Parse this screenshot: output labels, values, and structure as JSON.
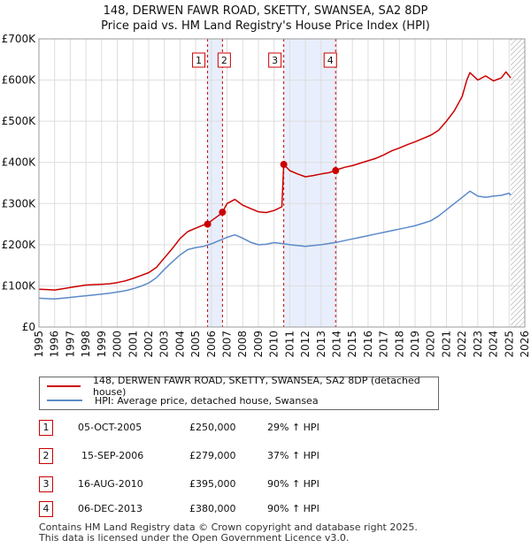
{
  "title_line1": "148, DERWEN FAWR ROAD, SKETTY, SWANSEA, SA2 8DP",
  "title_line2": "Price paid vs. HM Land Registry's House Price Index (HPI)",
  "colors": {
    "price": "#cc0000",
    "hpi": "#5b8ac9",
    "highlight": "#e8eefb",
    "grid": "#dddddd"
  },
  "chart_data": {
    "type": "line",
    "xlim": [
      1995,
      2026
    ],
    "ylim": [
      0,
      700000
    ],
    "y_ticks": [
      {
        "value": 0,
        "label": "£0"
      },
      {
        "value": 100000,
        "label": "£100K"
      },
      {
        "value": 200000,
        "label": "£200K"
      },
      {
        "value": 300000,
        "label": "£300K"
      },
      {
        "value": 400000,
        "label": "£400K"
      },
      {
        "value": 500000,
        "label": "£500K"
      },
      {
        "value": 600000,
        "label": "£600K"
      },
      {
        "value": 700000,
        "label": "£700K"
      }
    ],
    "x_ticks": [
      1995,
      1996,
      1997,
      1998,
      1999,
      2000,
      2001,
      2002,
      2003,
      2004,
      2005,
      2006,
      2007,
      2008,
      2009,
      2010,
      2011,
      2012,
      2013,
      2014,
      2015,
      2016,
      2017,
      2018,
      2019,
      2020,
      2021,
      2022,
      2023,
      2024,
      2025,
      2026
    ],
    "shaded_ranges": [
      [
        2005.76,
        2006.71
      ],
      [
        2010.62,
        2013.93
      ]
    ],
    "hatched_from": 2025.1,
    "series": [
      {
        "name": "148, DERWEN FAWR ROAD, SKETTY, SWANSEA, SA2 8DP (detached house)",
        "color": "#cc0000",
        "x": [
          1995,
          1995.5,
          1996,
          1996.5,
          1997,
          1997.5,
          1998,
          1998.5,
          1999,
          1999.5,
          2000,
          2000.5,
          2001,
          2001.5,
          2002,
          2002.5,
          2003,
          2003.5,
          2004,
          2004.5,
          2005,
          2005.5,
          2005.76,
          2006,
          2006.5,
          2006.71,
          2007,
          2007.5,
          2008,
          2008.5,
          2009,
          2009.5,
          2010,
          2010.5,
          2010.62,
          2010.7,
          2011,
          2011.5,
          2012,
          2012.5,
          2013,
          2013.5,
          2013.93,
          2014,
          2014.5,
          2015,
          2015.5,
          2016,
          2016.5,
          2017,
          2017.5,
          2018,
          2018.5,
          2019,
          2019.5,
          2020,
          2020.5,
          2021,
          2021.5,
          2022,
          2022.3,
          2022.5,
          2023,
          2023.5,
          2024,
          2024.5,
          2024.8,
          2025,
          2025.1
        ],
        "values": [
          92000,
          91000,
          90000,
          93000,
          96000,
          99000,
          102000,
          103000,
          104000,
          105000,
          108000,
          112000,
          118000,
          125000,
          132000,
          145000,
          168000,
          190000,
          215000,
          232000,
          240000,
          248000,
          250000,
          258000,
          272000,
          279000,
          300000,
          310000,
          296000,
          288000,
          280000,
          278000,
          283000,
          292000,
          395000,
          392000,
          380000,
          372000,
          365000,
          368000,
          372000,
          375000,
          380000,
          382000,
          388000,
          392000,
          398000,
          404000,
          410000,
          418000,
          428000,
          435000,
          443000,
          450000,
          458000,
          466000,
          478000,
          500000,
          525000,
          560000,
          600000,
          618000,
          600000,
          610000,
          598000,
          605000,
          620000,
          610000,
          605000
        ]
      },
      {
        "name": "HPI: Average price, detached house, Swansea",
        "color": "#5b8ac9",
        "x": [
          1995,
          1995.5,
          1996,
          1996.5,
          1997,
          1997.5,
          1998,
          1998.5,
          1999,
          1999.5,
          2000,
          2000.5,
          2001,
          2001.5,
          2002,
          2002.5,
          2003,
          2003.5,
          2004,
          2004.5,
          2005,
          2005.5,
          2006,
          2006.5,
          2007,
          2007.5,
          2008,
          2008.5,
          2009,
          2009.5,
          2010,
          2010.5,
          2011,
          2011.5,
          2012,
          2012.5,
          2013,
          2013.5,
          2014,
          2014.5,
          2015,
          2015.5,
          2016,
          2016.5,
          2017,
          2017.5,
          2018,
          2018.5,
          2019,
          2019.5,
          2020,
          2020.5,
          2021,
          2021.5,
          2022,
          2022.5,
          2023,
          2023.5,
          2024,
          2024.5,
          2025,
          2025.1
        ],
        "values": [
          70000,
          69000,
          68000,
          70000,
          72000,
          74000,
          76000,
          78000,
          80000,
          82000,
          85000,
          88000,
          93000,
          99000,
          107000,
          120000,
          140000,
          158000,
          175000,
          188000,
          193000,
          196000,
          202000,
          210000,
          218000,
          224000,
          216000,
          206000,
          200000,
          201000,
          205000,
          203000,
          200000,
          198000,
          196000,
          198000,
          200000,
          203000,
          206000,
          210000,
          214000,
          218000,
          222000,
          226000,
          230000,
          234000,
          238000,
          242000,
          246000,
          252000,
          258000,
          270000,
          285000,
          300000,
          315000,
          330000,
          318000,
          315000,
          318000,
          320000,
          325000,
          320000
        ]
      }
    ],
    "sale_markers": [
      {
        "id": "1",
        "x": 2005.76,
        "value": 250000
      },
      {
        "id": "2",
        "x": 2006.71,
        "value": 279000
      },
      {
        "id": "3",
        "x": 2010.62,
        "value": 395000
      },
      {
        "id": "4",
        "x": 2013.93,
        "value": 380000
      }
    ]
  },
  "legend": {
    "price_label": "148, DERWEN FAWR ROAD, SKETTY, SWANSEA, SA2 8DP (detached house)",
    "hpi_label": "HPI: Average price, detached house, Swansea"
  },
  "transactions": [
    {
      "id": "1",
      "date": "05-OCT-2005",
      "price": "£250,000",
      "hpi": "29% ↑ HPI"
    },
    {
      "id": "2",
      "date": "15-SEP-2006",
      "price": "£279,000",
      "hpi": "37% ↑ HPI"
    },
    {
      "id": "3",
      "date": "16-AUG-2010",
      "price": "£395,000",
      "hpi": "90% ↑ HPI"
    },
    {
      "id": "4",
      "date": "06-DEC-2013",
      "price": "£380,000",
      "hpi": "90% ↑ HPI"
    }
  ],
  "footer": {
    "line1": "Contains HM Land Registry data © Crown copyright and database right 2025.",
    "line2": "This data is licensed under the Open Government Licence v3.0."
  }
}
